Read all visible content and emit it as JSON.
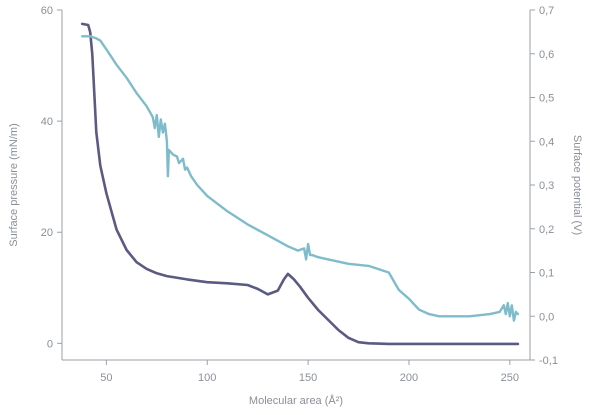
{
  "chart_data": {
    "type": "line",
    "title": "",
    "xlabel": "Molecular area (Å²)",
    "ylabel_left": "Surface pressure (mN/m)",
    "ylabel_right": "Surface potential (V)",
    "xlim": [
      28,
      260
    ],
    "ylim_left": [
      -3,
      60
    ],
    "ylim_right": [
      -0.1,
      0.7
    ],
    "x_ticks": [
      50,
      100,
      150,
      200,
      250
    ],
    "y_ticks_left": [
      0,
      20,
      40,
      60
    ],
    "y_ticks_left_labels": [
      "0",
      "20",
      "40",
      "60"
    ],
    "y_ticks_right": [
      -0.1,
      0.0,
      0.1,
      0.2,
      0.3,
      0.4,
      0.5,
      0.6,
      0.7
    ],
    "y_ticks_right_labels": [
      "-0,1",
      "0,0",
      "0,1",
      "0,2",
      "0,3",
      "0,4",
      "0,5",
      "0,6",
      "0,7"
    ],
    "grid": false,
    "legend": "none",
    "series": [
      {
        "axis": "left",
        "color": "#5a5a82",
        "x": [
          38,
          41,
          42,
          43,
          44,
          45,
          47,
          50,
          55,
          60,
          65,
          70,
          75,
          80,
          90,
          100,
          110,
          120,
          125,
          130,
          135,
          138,
          140,
          143,
          146,
          150,
          155,
          160,
          165,
          170,
          175,
          180,
          190,
          200,
          220,
          240,
          254
        ],
        "y": [
          57.5,
          57.3,
          56,
          52,
          45,
          38,
          32,
          27,
          20.5,
          16.8,
          14.6,
          13.4,
          12.6,
          12.1,
          11.5,
          11.0,
          10.8,
          10.5,
          9.8,
          8.8,
          9.5,
          11.5,
          12.5,
          11.5,
          10.2,
          8.2,
          6.0,
          4.2,
          2.4,
          1.0,
          0.2,
          0.0,
          -0.1,
          -0.1,
          -0.1,
          -0.1,
          -0.1
        ]
      },
      {
        "axis": "right",
        "color": "#7fbccb",
        "x": [
          38,
          42,
          45,
          47,
          50,
          55,
          60,
          65,
          70,
          73,
          74,
          75,
          76,
          77,
          78,
          79,
          80,
          80.5,
          81,
          82,
          83,
          85,
          86,
          88,
          89,
          90,
          92,
          95,
          100,
          110,
          120,
          130,
          140,
          145,
          148,
          149,
          150,
          151,
          152,
          155,
          160,
          170,
          180,
          190,
          195,
          200,
          205,
          210,
          215,
          220,
          230,
          240,
          245,
          247,
          248,
          249,
          250,
          251,
          252,
          253,
          254
        ],
        "y": [
          0.64,
          0.64,
          0.635,
          0.63,
          0.61,
          0.575,
          0.545,
          0.51,
          0.48,
          0.455,
          0.43,
          0.46,
          0.41,
          0.45,
          0.42,
          0.44,
          0.4,
          0.32,
          0.38,
          0.375,
          0.37,
          0.365,
          0.35,
          0.36,
          0.335,
          0.34,
          0.32,
          0.3,
          0.275,
          0.24,
          0.21,
          0.185,
          0.16,
          0.15,
          0.155,
          0.13,
          0.165,
          0.14,
          0.14,
          0.135,
          0.13,
          0.12,
          0.115,
          0.1,
          0.06,
          0.04,
          0.015,
          0.005,
          0.0,
          0.0,
          0.0,
          0.005,
          0.01,
          0.025,
          0.005,
          0.03,
          0.0,
          0.025,
          -0.01,
          0.01,
          0.005
        ]
      }
    ]
  }
}
